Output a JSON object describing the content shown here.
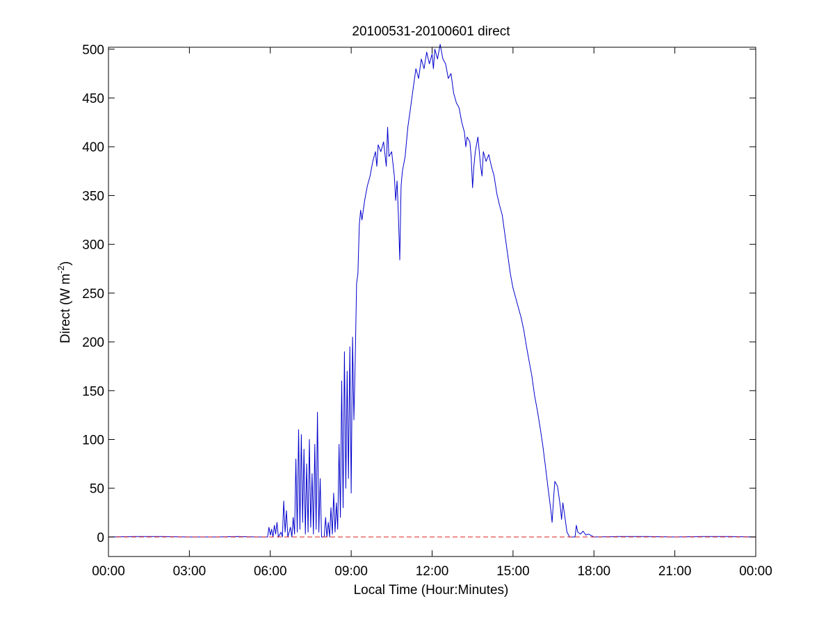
{
  "chart_data": {
    "type": "line",
    "title": "20100531-20100601 direct",
    "xlabel": "Local Time (Hour:Minutes)",
    "ylabel": {
      "prefix": "Direct (W m",
      "sup": "-2",
      "suffix": ")"
    },
    "xlim": [
      0,
      24
    ],
    "ylim": [
      -20,
      502
    ],
    "xticks": [
      0,
      3,
      6,
      9,
      12,
      15,
      18,
      21,
      24
    ],
    "xtick_labels": [
      "00:00",
      "03:00",
      "06:00",
      "09:00",
      "12:00",
      "15:00",
      "18:00",
      "21:00",
      "00:00"
    ],
    "yticks": [
      0,
      50,
      100,
      150,
      200,
      250,
      300,
      350,
      400,
      450,
      500
    ],
    "ytick_labels": [
      "0",
      "50",
      "100",
      "150",
      "200",
      "250",
      "300",
      "350",
      "400",
      "450",
      "500"
    ],
    "grid": false,
    "series": [
      {
        "color": "#0000cc",
        "style": "solid",
        "points": [
          [
            0.0,
            0
          ],
          [
            1.0,
            0.5
          ],
          [
            2.0,
            0.5
          ],
          [
            3.0,
            0
          ],
          [
            4.0,
            0
          ],
          [
            4.8,
            0.5
          ],
          [
            5.5,
            0
          ],
          [
            5.9,
            0
          ],
          [
            5.95,
            10
          ],
          [
            6.0,
            2
          ],
          [
            6.05,
            8
          ],
          [
            6.1,
            0
          ],
          [
            6.15,
            12
          ],
          [
            6.2,
            3
          ],
          [
            6.25,
            15
          ],
          [
            6.3,
            0
          ],
          [
            6.4,
            5
          ],
          [
            6.45,
            0
          ],
          [
            6.5,
            37
          ],
          [
            6.55,
            5
          ],
          [
            6.6,
            27
          ],
          [
            6.65,
            0
          ],
          [
            6.75,
            10
          ],
          [
            6.8,
            0
          ],
          [
            6.85,
            20
          ],
          [
            6.9,
            3
          ],
          [
            6.95,
            80
          ],
          [
            7.0,
            5
          ],
          [
            7.05,
            110
          ],
          [
            7.1,
            8
          ],
          [
            7.15,
            105
          ],
          [
            7.2,
            15
          ],
          [
            7.25,
            90
          ],
          [
            7.3,
            3
          ],
          [
            7.35,
            75
          ],
          [
            7.4,
            5
          ],
          [
            7.45,
            100
          ],
          [
            7.5,
            10
          ],
          [
            7.55,
            65
          ],
          [
            7.6,
            3
          ],
          [
            7.65,
            95
          ],
          [
            7.7,
            8
          ],
          [
            7.75,
            128
          ],
          [
            7.8,
            5
          ],
          [
            7.85,
            60
          ],
          [
            7.9,
            0
          ],
          [
            8.0,
            0
          ],
          [
            8.05,
            20
          ],
          [
            8.1,
            0
          ],
          [
            8.15,
            15
          ],
          [
            8.2,
            0
          ],
          [
            8.25,
            30
          ],
          [
            8.3,
            3
          ],
          [
            8.35,
            45
          ],
          [
            8.4,
            5
          ],
          [
            8.45,
            35
          ],
          [
            8.5,
            8
          ],
          [
            8.55,
            95
          ],
          [
            8.6,
            20
          ],
          [
            8.65,
            160
          ],
          [
            8.7,
            30
          ],
          [
            8.75,
            190
          ],
          [
            8.8,
            50
          ],
          [
            8.85,
            170
          ],
          [
            8.9,
            60
          ],
          [
            8.95,
            195
          ],
          [
            9.0,
            45
          ],
          [
            9.05,
            205
          ],
          [
            9.1,
            120
          ],
          [
            9.15,
            180
          ],
          [
            9.2,
            260
          ],
          [
            9.25,
            270
          ],
          [
            9.3,
            320
          ],
          [
            9.35,
            335
          ],
          [
            9.4,
            325
          ],
          [
            9.5,
            345
          ],
          [
            9.6,
            360
          ],
          [
            9.7,
            370
          ],
          [
            9.8,
            385
          ],
          [
            9.9,
            395
          ],
          [
            9.95,
            380
          ],
          [
            10.0,
            402
          ],
          [
            10.1,
            395
          ],
          [
            10.2,
            405
          ],
          [
            10.3,
            380
          ],
          [
            10.35,
            420
          ],
          [
            10.4,
            390
          ],
          [
            10.5,
            395
          ],
          [
            10.6,
            370
          ],
          [
            10.65,
            345
          ],
          [
            10.7,
            365
          ],
          [
            10.75,
            330
          ],
          [
            10.8,
            284
          ],
          [
            10.85,
            360
          ],
          [
            10.9,
            375
          ],
          [
            11.0,
            390
          ],
          [
            11.1,
            420
          ],
          [
            11.2,
            440
          ],
          [
            11.3,
            460
          ],
          [
            11.4,
            480
          ],
          [
            11.5,
            470
          ],
          [
            11.6,
            490
          ],
          [
            11.7,
            480
          ],
          [
            11.8,
            497
          ],
          [
            11.9,
            485
          ],
          [
            12.0,
            495
          ],
          [
            12.05,
            480
          ],
          [
            12.1,
            500
          ],
          [
            12.2,
            490
          ],
          [
            12.3,
            505
          ],
          [
            12.4,
            490
          ],
          [
            12.5,
            485
          ],
          [
            12.6,
            470
          ],
          [
            12.7,
            475
          ],
          [
            12.8,
            455
          ],
          [
            12.9,
            445
          ],
          [
            13.0,
            440
          ],
          [
            13.1,
            425
          ],
          [
            13.2,
            415
          ],
          [
            13.25,
            400
          ],
          [
            13.3,
            410
          ],
          [
            13.4,
            405
          ],
          [
            13.45,
            390
          ],
          [
            13.5,
            358
          ],
          [
            13.55,
            380
          ],
          [
            13.6,
            395
          ],
          [
            13.7,
            410
          ],
          [
            13.8,
            380
          ],
          [
            13.85,
            370
          ],
          [
            13.9,
            395
          ],
          [
            14.0,
            385
          ],
          [
            14.1,
            392
          ],
          [
            14.2,
            380
          ],
          [
            14.3,
            370
          ],
          [
            14.4,
            352
          ],
          [
            14.5,
            340
          ],
          [
            14.6,
            330
          ],
          [
            14.7,
            310
          ],
          [
            14.8,
            290
          ],
          [
            14.9,
            270
          ],
          [
            15.0,
            255
          ],
          [
            15.1,
            245
          ],
          [
            15.2,
            235
          ],
          [
            15.3,
            225
          ],
          [
            15.4,
            212
          ],
          [
            15.5,
            195
          ],
          [
            15.6,
            180
          ],
          [
            15.7,
            165
          ],
          [
            15.8,
            145
          ],
          [
            15.9,
            130
          ],
          [
            16.0,
            113
          ],
          [
            16.1,
            95
          ],
          [
            16.2,
            73
          ],
          [
            16.3,
            50
          ],
          [
            16.4,
            28
          ],
          [
            16.45,
            15
          ],
          [
            16.5,
            38
          ],
          [
            16.55,
            57
          ],
          [
            16.65,
            52
          ],
          [
            16.75,
            32
          ],
          [
            16.8,
            18
          ],
          [
            16.85,
            35
          ],
          [
            16.9,
            25
          ],
          [
            17.0,
            5
          ],
          [
            17.1,
            0
          ],
          [
            17.3,
            0
          ],
          [
            17.35,
            12
          ],
          [
            17.4,
            5
          ],
          [
            17.5,
            3
          ],
          [
            17.6,
            6
          ],
          [
            17.7,
            2
          ],
          [
            17.8,
            3
          ],
          [
            18.0,
            0
          ],
          [
            19.0,
            0.5
          ],
          [
            20.0,
            0.5
          ],
          [
            21.0,
            0
          ],
          [
            22.0,
            0.5
          ],
          [
            23.0,
            0.5
          ],
          [
            24.0,
            0
          ]
        ]
      },
      {
        "color": "#e02020",
        "style": "dashed",
        "points": [
          [
            0.0,
            0
          ],
          [
            24.0,
            0
          ]
        ]
      }
    ]
  }
}
